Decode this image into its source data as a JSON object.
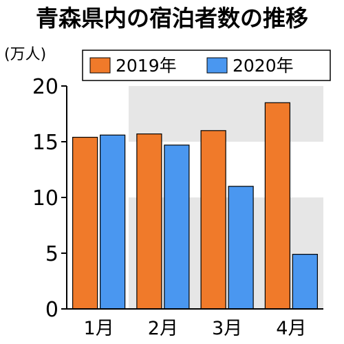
{
  "chart_data": {
    "type": "bar",
    "title": "青森県内の宿泊者数の推移",
    "unit_label": "(万人)",
    "categories": [
      "1月",
      "2月",
      "3月",
      "4月"
    ],
    "series": [
      {
        "name": "2019年",
        "color": "#f07a2a",
        "values": [
          15.4,
          15.7,
          16.0,
          18.5
        ]
      },
      {
        "name": "2020年",
        "color": "#4a97f0",
        "values": [
          15.6,
          14.7,
          11.0,
          4.9
        ]
      }
    ],
    "ylim": [
      0,
      20
    ],
    "yticks": [
      "0",
      "5",
      "10",
      "15",
      "20"
    ],
    "legend_position": "top",
    "band_color": "#e6e6e6",
    "axis_color": "#000000"
  }
}
